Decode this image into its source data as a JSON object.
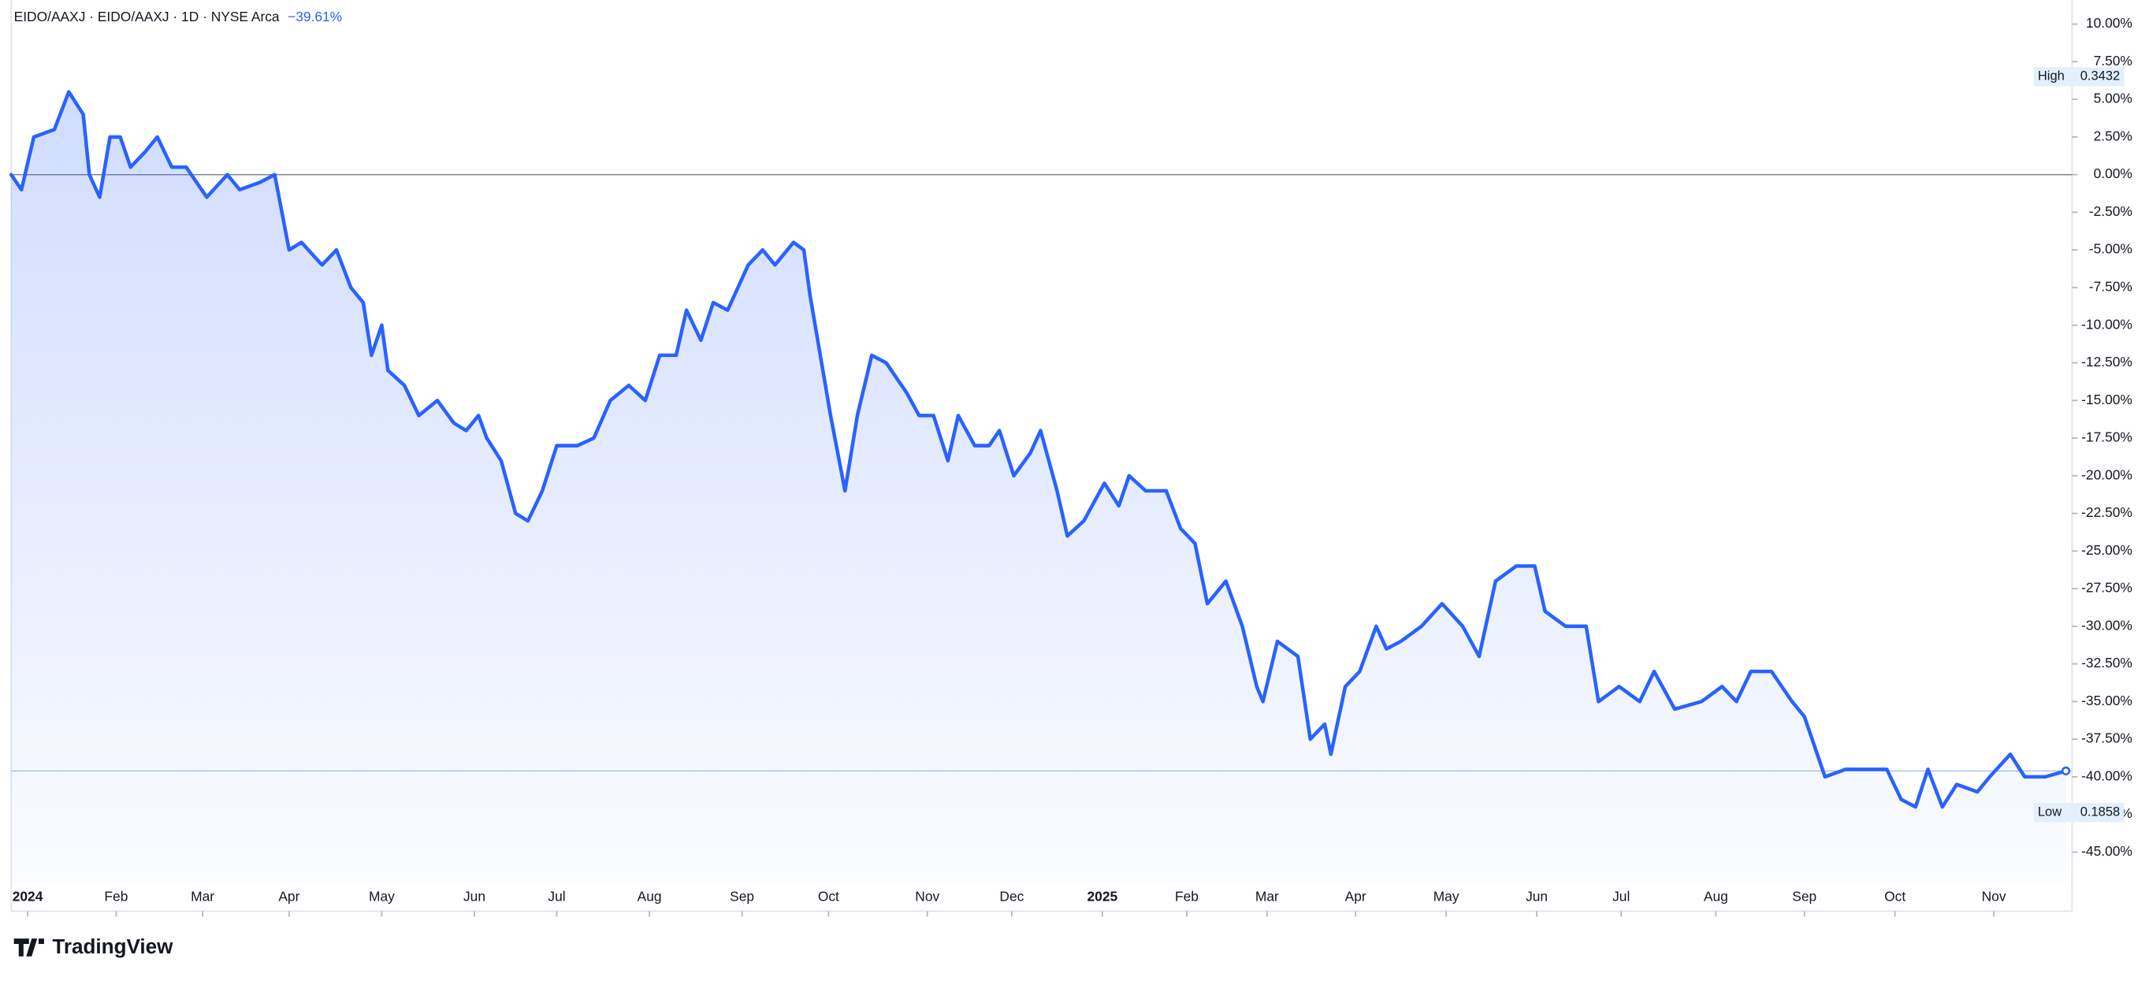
{
  "chart_data": {
    "type": "line",
    "title": "EIDO/AAXJ · EIDO/AAXJ · 1D · NYSE Arca",
    "change_label": "−39.61%",
    "last_value": -39.61,
    "branding": "TradingView",
    "high": {
      "label": "High",
      "value": 0.3432
    },
    "low": {
      "label": "Low",
      "value": 0.1858
    },
    "xlim": [
      0,
      100.1
    ],
    "ylim": [
      -47.1,
      11.6
    ],
    "baseline": 0,
    "xticks": [
      {
        "value": 0.8,
        "label": "2024"
      },
      {
        "value": 5.1,
        "label": "Feb"
      },
      {
        "value": 9.3,
        "label": "Mar"
      },
      {
        "value": 13.5,
        "label": "Apr"
      },
      {
        "value": 18,
        "label": "May"
      },
      {
        "value": 22.5,
        "label": "Jun"
      },
      {
        "value": 26.5,
        "label": "Jul"
      },
      {
        "value": 31,
        "label": "Aug"
      },
      {
        "value": 35.5,
        "label": "Sep"
      },
      {
        "value": 39.7,
        "label": "Oct"
      },
      {
        "value": 44.5,
        "label": "Nov"
      },
      {
        "value": 48.6,
        "label": "Dec"
      },
      {
        "value": 53,
        "label": "2025"
      },
      {
        "value": 57.1,
        "label": "Feb"
      },
      {
        "value": 61,
        "label": "Mar"
      },
      {
        "value": 65.3,
        "label": "Apr"
      },
      {
        "value": 69.7,
        "label": "May"
      },
      {
        "value": 74.1,
        "label": "Jun"
      },
      {
        "value": 78.2,
        "label": "Jul"
      },
      {
        "value": 82.8,
        "label": "Aug"
      },
      {
        "value": 87.1,
        "label": "Sep"
      },
      {
        "value": 91.5,
        "label": "Oct"
      },
      {
        "value": 96.3,
        "label": "Nov"
      }
    ],
    "yticks": [
      {
        "value": 10,
        "label": "10.00%"
      },
      {
        "value": 7.5,
        "label": "7.50%"
      },
      {
        "value": 5,
        "label": "5.00%"
      },
      {
        "value": 2.5,
        "label": "2.50%"
      },
      {
        "value": 0,
        "label": "0.00%"
      },
      {
        "value": -2.5,
        "label": "-2.50%"
      },
      {
        "value": -5,
        "label": "-5.00%"
      },
      {
        "value": -7.5,
        "label": "-7.50%"
      },
      {
        "value": -10,
        "label": "-10.00%"
      },
      {
        "value": -12.5,
        "label": "-12.50%"
      },
      {
        "value": -15,
        "label": "-15.00%"
      },
      {
        "value": -17.5,
        "label": "-17.50%"
      },
      {
        "value": -20,
        "label": "-20.00%"
      },
      {
        "value": -22.5,
        "label": "-22.50%"
      },
      {
        "value": -25,
        "label": "-25.00%"
      },
      {
        "value": -27.5,
        "label": "-27.50%"
      },
      {
        "value": -30,
        "label": "-30.00%"
      },
      {
        "value": -32.5,
        "label": "-32.50%"
      },
      {
        "value": -35,
        "label": "-35.00%"
      },
      {
        "value": -37.5,
        "label": "-37.50%"
      },
      {
        "value": -40,
        "label": "-40.00%"
      },
      {
        "value": -42.5,
        "label": "-42.50%"
      },
      {
        "value": -45,
        "label": "-45.00%"
      }
    ],
    "series": [
      {
        "name": "EIDO/AAXJ",
        "color": "#2962ff",
        "x": [
          0,
          0.5,
          1.1,
          2.1,
          2.8,
          3.5,
          3.8,
          4.3,
          4.8,
          5.3,
          5.8,
          6.5,
          7.1,
          7.8,
          8.5,
          9.5,
          10.5,
          11.1,
          12.1,
          12.8,
          13.5,
          14.1,
          15.1,
          15.8,
          16.5,
          17.1,
          17.5,
          18,
          18.3,
          19.1,
          19.8,
          20.7,
          21.5,
          22.1,
          22.7,
          23.1,
          23.8,
          24.5,
          25.1,
          25.8,
          26.5,
          27.5,
          28.3,
          29.1,
          30,
          30.8,
          31.5,
          32.3,
          32.8,
          33.5,
          34.1,
          34.8,
          35.8,
          36.5,
          37.1,
          38,
          38.5,
          38.8,
          39.3,
          39.8,
          40.5,
          41.1,
          41.8,
          42.5,
          43.5,
          44.1,
          44.8,
          45.5,
          46,
          46.8,
          47.5,
          48,
          48.7,
          49.5,
          50,
          50.8,
          51.3,
          52.1,
          53.1,
          53.8,
          54.3,
          55.1,
          56.1,
          56.8,
          57.5,
          58.1,
          59,
          59.8,
          60.5,
          60.8,
          61.5,
          62.5,
          63.1,
          63.8,
          64.1,
          64.8,
          65.5,
          66.3,
          66.8,
          67.5,
          68.5,
          69.5,
          70.5,
          71.3,
          72.1,
          73.1,
          74,
          74.5,
          75.5,
          76.5,
          77.1,
          78.1,
          79.1,
          79.8,
          80.8,
          82.1,
          83.1,
          83.8,
          84.5,
          85.5,
          86.5,
          87.1,
          88.1,
          89.1,
          90.1,
          91.1,
          91.8,
          92.5,
          93.1,
          93.8,
          94.5,
          95.5,
          96.1,
          97.1,
          97.8,
          98.8,
          99.8
        ],
        "values": [
          0,
          -1,
          2.5,
          3,
          5.5,
          4,
          0,
          -1.5,
          2.5,
          2.5,
          0.5,
          1.5,
          2.5,
          0.5,
          0.5,
          -1.5,
          0,
          -1,
          -0.5,
          0,
          -5,
          -4.5,
          -6,
          -5,
          -7.5,
          -8.5,
          -12,
          -10,
          -13,
          -14,
          -16,
          -15,
          -16.5,
          -17,
          -16,
          -17.5,
          -19,
          -22.5,
          -23,
          -21,
          -18,
          -18,
          -17.5,
          -15,
          -14,
          -15,
          -12,
          -12,
          -9,
          -11,
          -8.5,
          -9,
          -6,
          -5,
          -6,
          -4.5,
          -5,
          -8,
          -12,
          -16,
          -21,
          -16,
          -12,
          -12.5,
          -14.5,
          -16,
          -16,
          -19,
          -16,
          -18,
          -18,
          -17,
          -20,
          -18.5,
          -17,
          -21,
          -24,
          -23,
          -20.5,
          -22,
          -20,
          -21,
          -21,
          -23.5,
          -24.5,
          -28.5,
          -27,
          -30,
          -34,
          -35,
          -31,
          -32,
          -37.5,
          -36.5,
          -38.5,
          -34,
          -33,
          -30,
          -31.5,
          -31,
          -30,
          -28.5,
          -30,
          -32,
          -27,
          -26,
          -26,
          -29,
          -30,
          -30,
          -35,
          -34,
          -35,
          -33,
          -35.5,
          -35,
          -34,
          -35,
          -33,
          -33,
          -35,
          -36,
          -40,
          -39.5,
          -39.5,
          -39.5,
          -41.5,
          -42,
          -39.5,
          -42,
          -40.5,
          -41,
          -40,
          -38.5,
          -40,
          -40,
          -39.61
        ]
      }
    ]
  }
}
